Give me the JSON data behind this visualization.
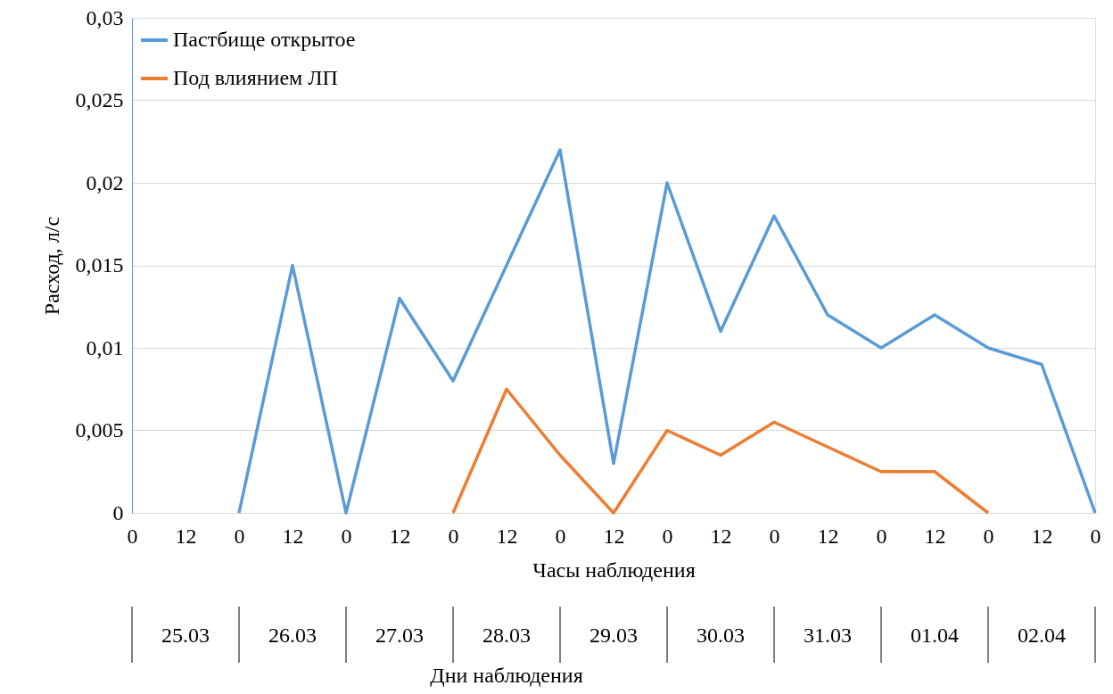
{
  "chart_data": {
    "type": "line",
    "categories": [
      "0",
      "12",
      "0",
      "12",
      "0",
      "12",
      "0",
      "12",
      "0",
      "12",
      "0",
      "12",
      "0",
      "12",
      "0",
      "12",
      "0",
      "12",
      "0"
    ],
    "series": [
      {
        "name": "Пастбище открытое",
        "color": "#5b9bd5",
        "values": [
          null,
          null,
          0,
          0.015,
          0,
          0.013,
          0.008,
          0.015,
          0.022,
          0.003,
          0.02,
          0.011,
          0.018,
          0.012,
          0.01,
          0.012,
          0.01,
          0.009,
          0
        ]
      },
      {
        "name": "Под влиянием ЛП",
        "color": "#ed7d31",
        "values": [
          null,
          null,
          null,
          null,
          null,
          null,
          0,
          0.0075,
          0.0035,
          0,
          0.005,
          0.0035,
          0.0055,
          0.004,
          0.0025,
          0.0025,
          0,
          null,
          null
        ]
      }
    ],
    "xlabel": "Часы наблюдения",
    "ylabel": "Расход, л/с",
    "ylim": [
      0,
      0.03
    ],
    "yticks": [
      {
        "value": 0,
        "label": "0"
      },
      {
        "value": 0.005,
        "label": "0,005"
      },
      {
        "value": 0.01,
        "label": "0,01"
      },
      {
        "value": 0.015,
        "label": "0,015"
      },
      {
        "value": 0.02,
        "label": "0,02"
      },
      {
        "value": 0.025,
        "label": "0,025"
      },
      {
        "value": 0.03,
        "label": "0,03"
      }
    ],
    "annotations": [
      "25.03",
      "26.03",
      "27.03",
      "28.03",
      "29.03",
      "30.03",
      "31.03",
      "01.04",
      "02.04",
      "Дни наблюдения"
    ],
    "grid": "y",
    "legend": "top left",
    "marker": "none",
    "line_style": "solid"
  }
}
